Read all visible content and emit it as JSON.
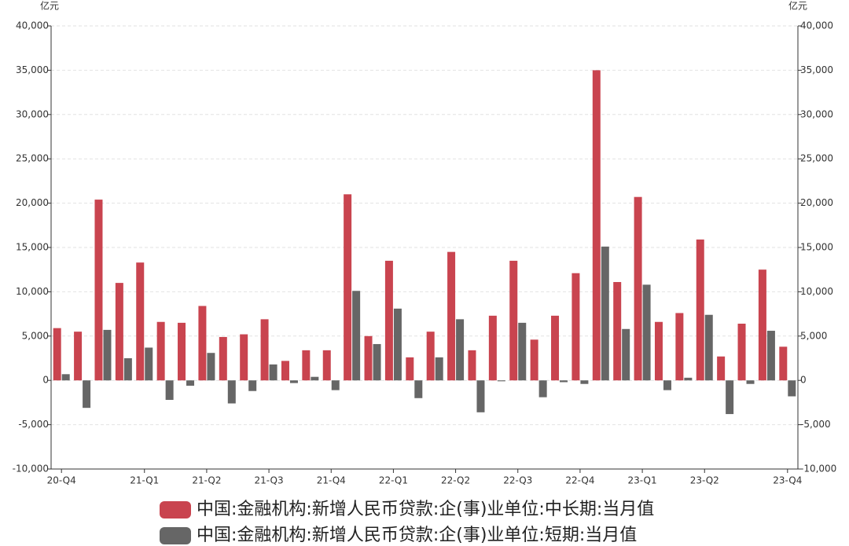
{
  "chart_data": {
    "type": "bar",
    "y_unit": "亿元",
    "y2_unit": "亿元",
    "categories": [
      "20-Q4",
      null,
      null,
      null,
      "21-Q1",
      null,
      null,
      "21-Q2",
      null,
      null,
      "21-Q3",
      null,
      null,
      "21-Q4",
      null,
      null,
      "22-Q1",
      null,
      null,
      "22-Q2",
      null,
      null,
      "22-Q3",
      null,
      null,
      "22-Q4",
      null,
      null,
      "23-Q1",
      null,
      null,
      "23-Q2",
      null,
      null,
      null,
      "23-Q4"
    ],
    "series": [
      {
        "name": "中国:金融机构:新增人民币贷款:企(事)业单位:中长期:当月值",
        "color": "#c9444f",
        "values": [
          5900,
          5500,
          20400,
          11000,
          13300,
          6600,
          6500,
          8400,
          4900,
          5200,
          6900,
          2200,
          3400,
          3400,
          21000,
          5000,
          13500,
          2600,
          5500,
          14500,
          3400,
          7300,
          13500,
          4600,
          7300,
          12100,
          35000,
          11100,
          20700,
          6600,
          7600,
          15900,
          2700,
          6400,
          12500,
          3800
        ]
      },
      {
        "name": "中国:金融机构:新增人民币贷款:企(事)业单位:短期:当月值",
        "color": "#666666",
        "values": [
          700,
          -3100,
          5700,
          2500,
          3700,
          -2200,
          -600,
          3100,
          -2600,
          -1200,
          1800,
          -300,
          400,
          -1100,
          10100,
          4100,
          8100,
          -2000,
          2600,
          6900,
          -3600,
          -100,
          6500,
          -1900,
          -200,
          -400,
          15100,
          5800,
          10800,
          -1100,
          300,
          7400,
          -3800,
          -400,
          5600,
          -1800
        ]
      }
    ],
    "ylim": [
      -10000,
      40000
    ],
    "yticks": [
      {
        "value": -10000,
        "label": "-10,000"
      },
      {
        "value": -5000,
        "label": "-5,000"
      },
      0,
      {
        "value": 5000,
        "label": "5,000"
      },
      {
        "value": 10000,
        "label": "10,000"
      },
      {
        "value": 15000,
        "label": "15,000"
      },
      {
        "value": 20000,
        "label": "20,000"
      },
      {
        "value": 25000,
        "label": "25,000"
      },
      {
        "value": 30000,
        "label": "30,000"
      },
      {
        "value": 35000,
        "label": "35,000"
      },
      {
        "value": 40000,
        "label": "40,000"
      }
    ],
    "y2lim": [
      -10000,
      40000
    ],
    "y2ticks": [
      {
        "value": -10000,
        "label": "-10,000"
      },
      {
        "value": -5000,
        "label": "-5,000"
      },
      0,
      {
        "value": 5000,
        "label": "5,000"
      },
      {
        "value": 10000,
        "label": "10,000"
      },
      {
        "value": 15000,
        "label": "15,000"
      },
      {
        "value": 20000,
        "label": "20,000"
      },
      {
        "value": 25000,
        "label": "25,000"
      },
      {
        "value": 30000,
        "label": "30,000"
      },
      {
        "value": 35000,
        "label": "35,000"
      },
      {
        "value": 40000,
        "label": "40,000"
      }
    ],
    "grid": true,
    "legend": "bottom"
  }
}
